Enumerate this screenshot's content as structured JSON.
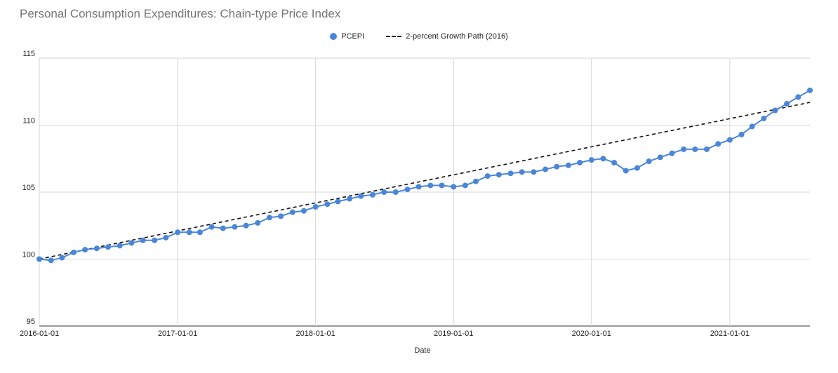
{
  "chart_data": {
    "type": "line",
    "title": "Personal Consumption Expenditures: Chain-type Price Index",
    "xlabel": "Date",
    "ylabel": "",
    "ylim": [
      95,
      115
    ],
    "xlim": [
      "2016-01-01",
      "2021-08-01"
    ],
    "y_ticks": [
      95,
      100,
      105,
      110,
      115
    ],
    "x_ticks": [
      "2016-01-01",
      "2017-01-01",
      "2018-01-01",
      "2019-01-01",
      "2020-01-01",
      "2021-01-01"
    ],
    "grid": true,
    "legend_position": "top-center",
    "x": [
      "2016-01-01",
      "2016-02-01",
      "2016-03-01",
      "2016-04-01",
      "2016-05-01",
      "2016-06-01",
      "2016-07-01",
      "2016-08-01",
      "2016-09-01",
      "2016-10-01",
      "2016-11-01",
      "2016-12-01",
      "2017-01-01",
      "2017-02-01",
      "2017-03-01",
      "2017-04-01",
      "2017-05-01",
      "2017-06-01",
      "2017-07-01",
      "2017-08-01",
      "2017-09-01",
      "2017-10-01",
      "2017-11-01",
      "2017-12-01",
      "2018-01-01",
      "2018-02-01",
      "2018-03-01",
      "2018-04-01",
      "2018-05-01",
      "2018-06-01",
      "2018-07-01",
      "2018-08-01",
      "2018-09-01",
      "2018-10-01",
      "2018-11-01",
      "2018-12-01",
      "2019-01-01",
      "2019-02-01",
      "2019-03-01",
      "2019-04-01",
      "2019-05-01",
      "2019-06-01",
      "2019-07-01",
      "2019-08-01",
      "2019-09-01",
      "2019-10-01",
      "2019-11-01",
      "2019-12-01",
      "2020-01-01",
      "2020-02-01",
      "2020-03-01",
      "2020-04-01",
      "2020-05-01",
      "2020-06-01",
      "2020-07-01",
      "2020-08-01",
      "2020-09-01",
      "2020-10-01",
      "2020-11-01",
      "2020-12-01",
      "2021-01-01",
      "2021-02-01",
      "2021-03-01",
      "2021-04-01",
      "2021-05-01",
      "2021-06-01",
      "2021-07-01",
      "2021-08-01"
    ],
    "series": [
      {
        "name": "PCEPI",
        "style": "line-with-markers",
        "color": "#4a86d8",
        "values": [
          100.0,
          99.9,
          100.1,
          100.5,
          100.7,
          100.8,
          100.9,
          101.0,
          101.2,
          101.4,
          101.4,
          101.6,
          102.0,
          102.0,
          102.0,
          102.4,
          102.3,
          102.4,
          102.5,
          102.7,
          103.1,
          103.2,
          103.5,
          103.6,
          103.9,
          104.1,
          104.3,
          104.5,
          104.7,
          104.8,
          105.0,
          105.0,
          105.2,
          105.4,
          105.5,
          105.5,
          105.4,
          105.5,
          105.8,
          106.2,
          106.3,
          106.4,
          106.5,
          106.5,
          106.7,
          106.9,
          107.0,
          107.2,
          107.4,
          107.5,
          107.2,
          106.6,
          106.8,
          107.3,
          107.6,
          107.9,
          108.2,
          108.2,
          108.2,
          108.6,
          108.9,
          109.3,
          109.9,
          110.5,
          111.1,
          111.6,
          112.1,
          112.6
        ]
      },
      {
        "name": "2-percent Growth Path (2016)",
        "style": "dashed",
        "color": "#111111",
        "values": [
          100.0,
          111.7
        ],
        "x": [
          "2016-01-01",
          "2021-08-01"
        ]
      }
    ]
  }
}
